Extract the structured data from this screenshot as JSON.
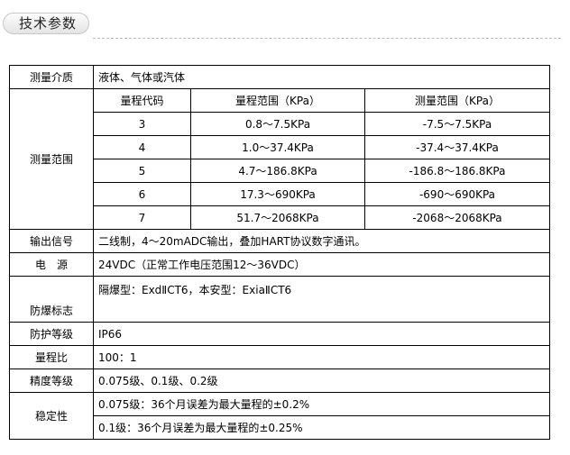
{
  "section_title": "技术参数",
  "rows": {
    "medium": {
      "label": "测量介质",
      "value": "液体、气体或汽体"
    },
    "range": {
      "label": "测量范围",
      "headers": [
        "量程代码",
        "量程范围（KPa）",
        "测量范围（KPa）"
      ],
      "items": [
        [
          "3",
          "0.8～7.5KPa",
          "-7.5～7.5KPa"
        ],
        [
          "4",
          "1.0～37.4KPa",
          "-37.4～37.4KPa"
        ],
        [
          "5",
          "4.7～186.8KPa",
          "-186.8～186.8KPa"
        ],
        [
          "6",
          "17.3～690KPa",
          "-690～690KPa"
        ],
        [
          "7",
          "51.7～2068KPa",
          "-2068～2068KPa"
        ]
      ]
    },
    "output": {
      "label": "输出信号",
      "value": "二线制，4～20mADC输出，叠加HART协议数字通讯。"
    },
    "power": {
      "label": "电　源",
      "value": "24VDC（正常工作电压范围12～36VDC）"
    },
    "explosion": {
      "label": "防爆标志",
      "value": "隔爆型：ExdⅡCT6，本安型：ExiaⅡCT6"
    },
    "protection": {
      "label": "防护等级",
      "value": "IP66"
    },
    "ratio": {
      "label": "量程比",
      "value": "100：1"
    },
    "accuracy": {
      "label": "精度等级",
      "value": "0.075级、0.1级、0.2级"
    },
    "stability": {
      "label": "稳定性",
      "values": [
        "0.075级：36个月误差为最大量程的±0.2%",
        "0.1级：36个月误差为最大量程的±0.25%"
      ]
    }
  }
}
